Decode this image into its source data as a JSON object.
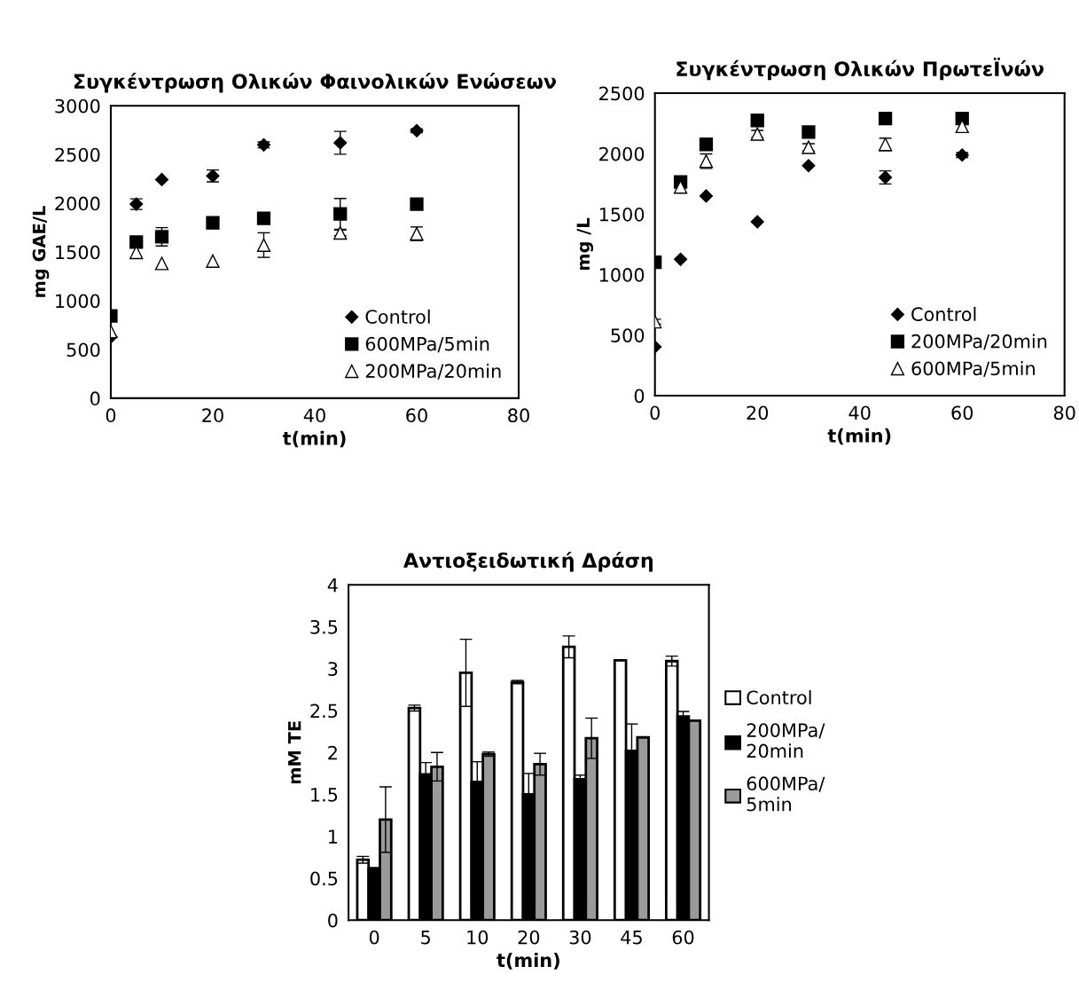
{
  "chart_data": [
    {
      "type": "scatter",
      "title": "Συγκέντρωση Ολικών Φαινολικών Ενώσεων",
      "xlabel": "t(min)",
      "ylabel": "mg GAE/L",
      "xlim": [
        0,
        80
      ],
      "xticks": [
        0,
        20,
        40,
        60,
        80
      ],
      "ylim": [
        0,
        3000
      ],
      "yticks": [
        0,
        500,
        1000,
        1500,
        2000,
        2500,
        3000
      ],
      "grid": false,
      "legend": "bottom right",
      "series": [
        {
          "name": "Control",
          "color": "#000000",
          "marker": "diamond",
          "x": [
            0,
            5,
            10,
            20,
            30,
            45,
            60
          ],
          "values": [
            629,
            1991,
            2243,
            2280,
            2599,
            2620,
            2745
          ],
          "errors": [
            null,
            55,
            null,
            61,
            30,
            117,
            20
          ]
        },
        {
          "name": "600MPa/5min",
          "color": "#000000",
          "marker": "square",
          "x": [
            0,
            5,
            10,
            20,
            30,
            45,
            60
          ],
          "values": [
            845,
            1602,
            1656,
            1799,
            1845,
            1891,
            1991
          ],
          "errors": [
            null,
            null,
            94,
            null,
            40,
            158,
            null
          ]
        },
        {
          "name": "200MPa/20min",
          "color": "#ffffff",
          "marker": "triangle",
          "x": [
            0,
            5,
            10,
            20,
            30,
            45,
            60
          ],
          "values": [
            684,
            1496,
            1383,
            1407,
            1571,
            1696,
            1687
          ],
          "errors": [
            null,
            null,
            null,
            null,
            126,
            30,
            70
          ]
        }
      ]
    },
    {
      "type": "scatter",
      "title": "Συγκέντρωση Ολικών ΠρωτεΪνών",
      "xlabel": "t(min)",
      "ylabel": "mg /L",
      "xlim": [
        0,
        80
      ],
      "xticks": [
        0,
        20,
        40,
        60,
        80
      ],
      "ylim": [
        0,
        2500
      ],
      "yticks": [
        0,
        500,
        1000,
        1500,
        2000,
        2500
      ],
      "grid": false,
      "legend": "bottom right",
      "series": [
        {
          "name": "Control",
          "color": "#000000",
          "marker": "diamond",
          "x": [
            0,
            5,
            10,
            20,
            30,
            45,
            60
          ],
          "values": [
            403,
            1127,
            1650,
            1437,
            1901,
            1804,
            1989
          ],
          "errors": [
            null,
            null,
            null,
            null,
            null,
            54,
            20
          ]
        },
        {
          "name": "200MPa/20min",
          "color": "#000000",
          "marker": "square",
          "x": [
            0,
            5,
            10,
            20,
            30,
            45,
            60
          ],
          "values": [
            1102,
            1767,
            2077,
            2275,
            2178,
            2290,
            2290
          ]
        },
        {
          "name": "600MPa/5min",
          "color": "#ffffff",
          "marker": "triangle",
          "x": [
            0,
            5,
            10,
            20,
            30,
            45,
            60
          ],
          "values": [
            611,
            1725,
            1938,
            2163,
            2053,
            2077,
            2226
          ],
          "errors": [
            20,
            null,
            60,
            30,
            30,
            51,
            null
          ]
        }
      ]
    },
    {
      "type": "bar",
      "title": "Αντιοξειδωτική Δράση",
      "xlabel": "t(min)",
      "ylabel": "mM TE",
      "categories": [
        "0",
        "5",
        "10",
        "20",
        "30",
        "45",
        "60"
      ],
      "ylim": [
        0,
        4
      ],
      "yticks": [
        0,
        0.5,
        1,
        1.5,
        2,
        2.5,
        3,
        3.5,
        4
      ],
      "grid": false,
      "legend": "right",
      "series": [
        {
          "name": "Control",
          "color": "#ffffff",
          "values": [
            0.72,
            2.53,
            2.95,
            2.84,
            3.26,
            3.1,
            3.09
          ],
          "errors": [
            0.04,
            0.035,
            0.4,
            0.02,
            0.13,
            null,
            0.06
          ]
        },
        {
          "name": "200MPa/\n20min",
          "color": "#000000",
          "values": [
            0.62,
            1.74,
            1.65,
            1.5,
            1.68,
            2.02,
            2.43
          ],
          "errors": [
            null,
            0.14,
            0.24,
            0.25,
            0.05,
            0.32,
            0.06
          ]
        },
        {
          "name": "600MPa/\n5min",
          "color": "#9a9a9a",
          "values": [
            1.2,
            1.83,
            1.98,
            1.86,
            2.17,
            2.18,
            2.38
          ],
          "errors": [
            0.39,
            0.17,
            0.025,
            0.13,
            0.24,
            null,
            null
          ]
        }
      ]
    }
  ]
}
